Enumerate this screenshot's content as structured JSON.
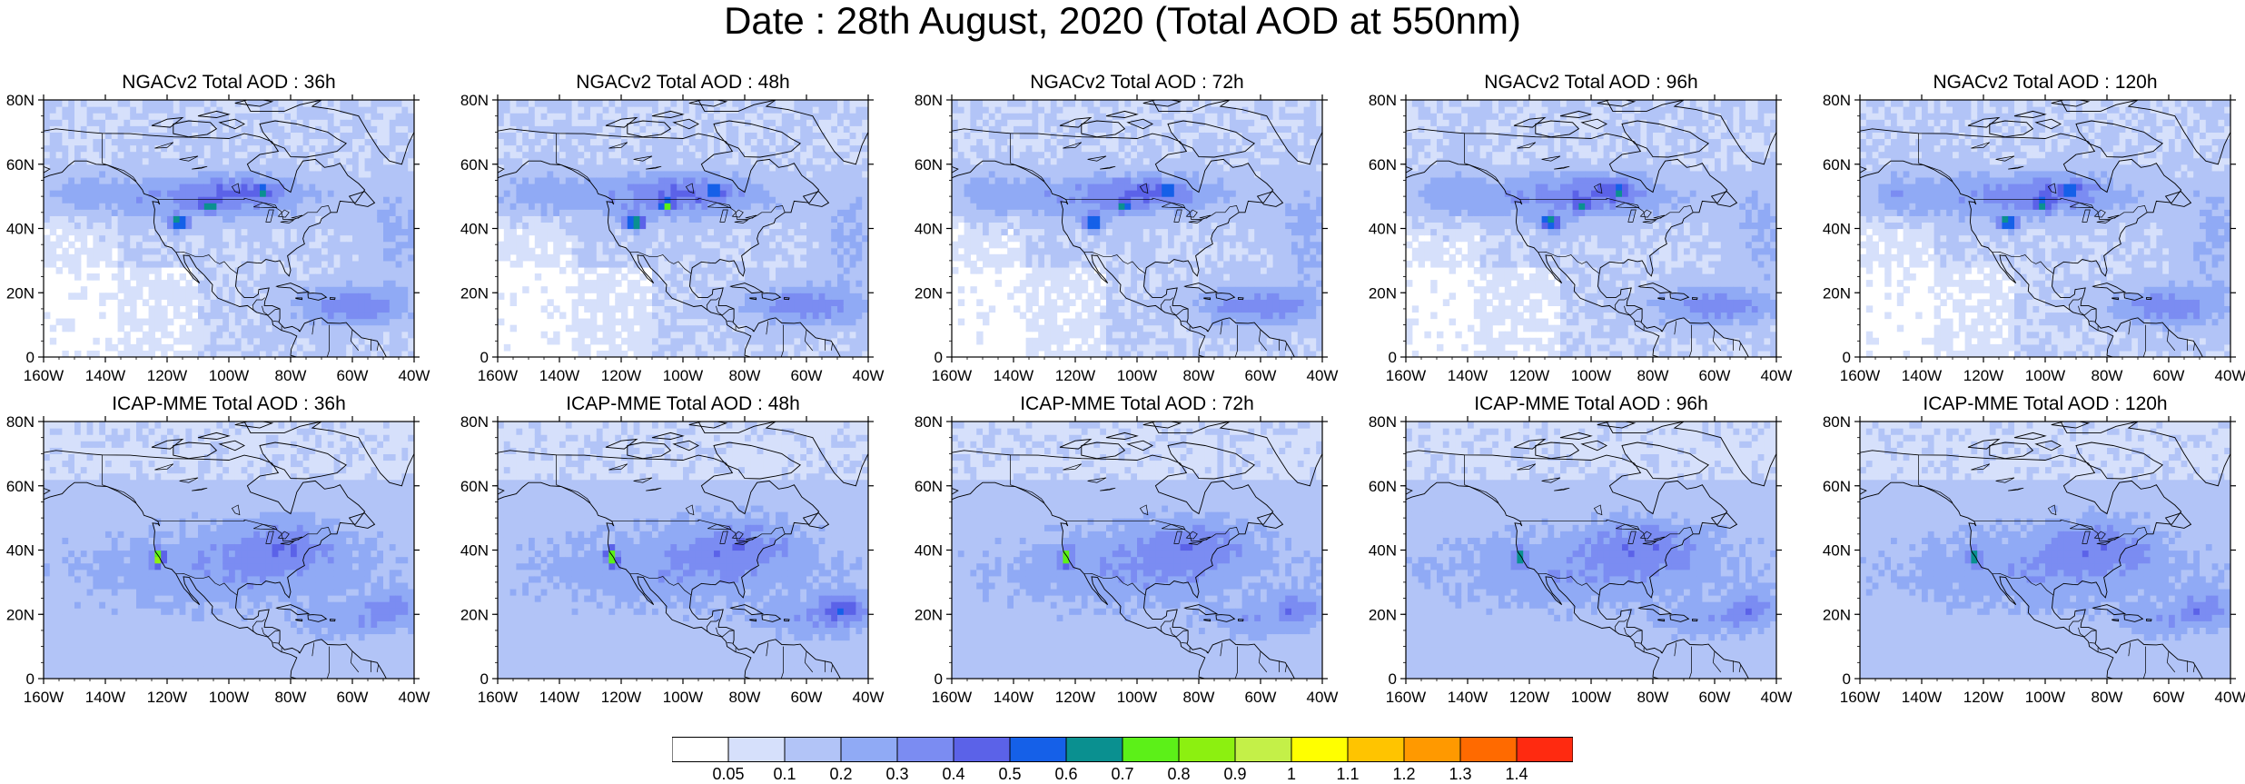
{
  "title": "Date : 28th August, 2020 (Total AOD at 550nm)",
  "axes": {
    "x_ticks": [
      "160W",
      "140W",
      "120W",
      "100W",
      "80W",
      "60W",
      "40W"
    ],
    "y_ticks": [
      "0",
      "20N",
      "40N",
      "60N",
      "80N"
    ],
    "lon_range": [
      -160,
      -40
    ],
    "lat_range": [
      0,
      80
    ]
  },
  "panels": [
    {
      "title": "NGACv2 Total AOD : 36h",
      "model": "NGACv2",
      "lead": "36h"
    },
    {
      "title": "NGACv2 Total AOD : 48h",
      "model": "NGACv2",
      "lead": "48h"
    },
    {
      "title": "NGACv2 Total AOD : 72h",
      "model": "NGACv2",
      "lead": "72h"
    },
    {
      "title": "NGACv2 Total AOD : 96h",
      "model": "NGACv2",
      "lead": "96h"
    },
    {
      "title": "NGACv2 Total AOD : 120h",
      "model": "NGACv2",
      "lead": "120h"
    },
    {
      "title": "ICAP-MME Total AOD : 36h",
      "model": "ICAP-MME",
      "lead": "36h"
    },
    {
      "title": "ICAP-MME Total AOD : 48h",
      "model": "ICAP-MME",
      "lead": "48h"
    },
    {
      "title": "ICAP-MME Total AOD : 72h",
      "model": "ICAP-MME",
      "lead": "72h"
    },
    {
      "title": "ICAP-MME Total AOD : 96h",
      "model": "ICAP-MME",
      "lead": "96h"
    },
    {
      "title": "ICAP-MME Total AOD : 120h",
      "model": "ICAP-MME",
      "lead": "120h"
    }
  ],
  "colorbar": {
    "labels": [
      "0.05",
      "0.1",
      "0.2",
      "0.3",
      "0.4",
      "0.5",
      "0.6",
      "0.7",
      "0.8",
      "0.9",
      "1",
      "1.1",
      "1.2",
      "1.3",
      "1.4"
    ],
    "colors": [
      "#ffffff",
      "#d6e0fb",
      "#b2c4f7",
      "#90aaf5",
      "#7b8cf2",
      "#5b62e8",
      "#1560e8",
      "#0a9090",
      "#5cf018",
      "#8cf010",
      "#c4f048",
      "#ffff00",
      "#ffc400",
      "#ff9900",
      "#ff6a00",
      "#ff2a10"
    ]
  }
}
